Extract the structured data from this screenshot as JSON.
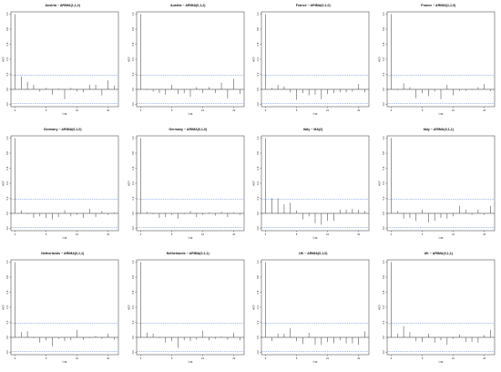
{
  "chart_data": [
    {
      "type": "acf",
      "title": "Austria ~ ARIMA(1,1,2)",
      "xlabel": "Lag",
      "ylabel": "ACF",
      "xlim": [
        0,
        16
      ],
      "ylim": [
        -0.2,
        1.0
      ],
      "conf": 0.19,
      "lags": [
        0,
        1,
        2,
        3,
        4,
        5,
        6,
        7,
        8,
        9,
        10,
        11,
        12,
        13,
        14,
        15,
        16
      ],
      "values": [
        1.0,
        0.17,
        0.1,
        0.06,
        -0.03,
        0.02,
        -0.07,
        0.01,
        -0.13,
        0.02,
        -0.03,
        -0.04,
        0.06,
        0.06,
        -0.08,
        0.12,
        0.05
      ],
      "x_ticks": [
        0,
        5,
        10,
        15
      ],
      "y_ticks": [
        -0.2,
        0.0,
        0.2,
        0.4,
        0.6,
        0.8,
        1.0
      ]
    },
    {
      "type": "acf",
      "title": "Austria ~ ARIMA(0,1,2)",
      "xlabel": "Lag",
      "ylabel": "ACF",
      "xlim": [
        0,
        16
      ],
      "ylim": [
        -0.2,
        1.0
      ],
      "conf": 0.19,
      "lags": [
        0,
        1,
        2,
        3,
        4,
        5,
        6,
        7,
        8,
        9,
        10,
        11,
        12,
        13,
        14,
        15,
        16
      ],
      "values": [
        1.0,
        -0.01,
        -0.03,
        -0.05,
        -0.07,
        0.06,
        -0.06,
        -0.05,
        -0.1,
        0.03,
        -0.05,
        0.03,
        -0.05,
        0.09,
        -0.12,
        0.14,
        -0.06
      ],
      "x_ticks": [
        0,
        5,
        10,
        15
      ],
      "y_ticks": [
        -0.2,
        0.0,
        0.2,
        0.4,
        0.6,
        0.8,
        1.0
      ]
    },
    {
      "type": "acf",
      "title": "France ~ ARIMA(0,1,0)",
      "xlabel": "Lag",
      "ylabel": "ACF",
      "xlim": [
        0,
        16
      ],
      "ylim": [
        -0.2,
        1.0
      ],
      "conf": 0.19,
      "lags": [
        0,
        1,
        2,
        3,
        4,
        5,
        6,
        7,
        8,
        9,
        10,
        11,
        12,
        13,
        14,
        15,
        16
      ],
      "values": [
        1.0,
        0.02,
        0.06,
        0.04,
        -0.04,
        -0.14,
        -0.05,
        -0.08,
        -0.07,
        -0.13,
        -0.06,
        -0.05,
        -0.04,
        -0.04,
        -0.03,
        0.07,
        -0.04
      ],
      "x_ticks": [
        0,
        5,
        10,
        15
      ],
      "y_ticks": [
        -0.2,
        0.0,
        0.2,
        0.4,
        0.6,
        0.8,
        1.0
      ]
    },
    {
      "type": "acf",
      "title": "France ~ ARIMA(1,1,0)",
      "xlabel": "Lag",
      "ylabel": "ACF",
      "xlim": [
        0,
        16
      ],
      "ylim": [
        -0.2,
        1.0
      ],
      "conf": 0.19,
      "lags": [
        0,
        1,
        2,
        3,
        4,
        5,
        6,
        7,
        8,
        9,
        10,
        11,
        12,
        13,
        14,
        15,
        16
      ],
      "values": [
        1.0,
        -0.01,
        0.08,
        0.03,
        -0.12,
        -0.05,
        -0.09,
        -0.03,
        -0.13,
        0.06,
        -0.08,
        -0.02,
        -0.02,
        -0.01,
        0.03,
        0.07,
        -0.02
      ],
      "x_ticks": [
        0,
        5,
        10,
        15
      ],
      "y_ticks": [
        -0.2,
        0.0,
        0.2,
        0.4,
        0.6,
        0.8,
        1.0
      ]
    },
    {
      "type": "acf",
      "title": "Germany ~ ARIMA(0,1,0)",
      "xlabel": "Lag",
      "ylabel": "ACF",
      "xlim": [
        0,
        16
      ],
      "ylim": [
        -0.2,
        1.0
      ],
      "conf": 0.19,
      "lags": [
        0,
        1,
        2,
        3,
        4,
        5,
        6,
        7,
        8,
        9,
        10,
        11,
        12,
        13,
        14,
        15,
        16
      ],
      "values": [
        1.0,
        0.04,
        -0.01,
        -0.06,
        -0.04,
        -0.06,
        -0.08,
        -0.05,
        0.04,
        -0.04,
        -0.02,
        -0.06,
        0.06,
        -0.05,
        0.03,
        -0.02,
        0.01
      ],
      "x_ticks": [
        0,
        5,
        10,
        15
      ],
      "y_ticks": [
        -0.2,
        0.0,
        0.2,
        0.4,
        0.6,
        0.8,
        1.0
      ]
    },
    {
      "type": "acf",
      "title": "Germany ~ ARIMA(0,1,0)",
      "xlabel": "Lag",
      "ylabel": "ACF",
      "xlim": [
        0,
        16
      ],
      "ylim": [
        -0.2,
        1.0
      ],
      "conf": 0.19,
      "lags": [
        0,
        1,
        2,
        3,
        4,
        5,
        6,
        7,
        8,
        9,
        10,
        11,
        12,
        13,
        14,
        15,
        16
      ],
      "values": [
        1.0,
        0.02,
        -0.01,
        -0.06,
        -0.05,
        -0.02,
        -0.07,
        -0.01,
        0.03,
        -0.05,
        -0.02,
        0.01,
        -0.03,
        0.02,
        -0.05,
        0.01,
        -0.02
      ],
      "x_ticks": [
        0,
        5,
        10,
        15
      ],
      "y_ticks": [
        -0.2,
        0.0,
        0.2,
        0.4,
        0.6,
        0.8,
        1.0
      ]
    },
    {
      "type": "acf",
      "title": "Italy ~ MA(2)",
      "xlabel": "Lag",
      "ylabel": "ACF",
      "xlim": [
        0,
        16
      ],
      "ylim": [
        -0.2,
        1.0
      ],
      "conf": 0.19,
      "lags": [
        0,
        1,
        2,
        3,
        4,
        5,
        6,
        7,
        8,
        9,
        10,
        11,
        12,
        13,
        14,
        15,
        16
      ],
      "values": [
        1.0,
        0.2,
        0.2,
        0.12,
        0.14,
        0.04,
        -0.08,
        -0.04,
        -0.13,
        -0.15,
        -0.1,
        -0.1,
        0.05,
        0.05,
        0.06,
        0.05,
        0.03
      ],
      "x_ticks": [
        0,
        5,
        10,
        15
      ],
      "y_ticks": [
        -0.2,
        0.0,
        0.2,
        0.4,
        0.6,
        0.8,
        1.0
      ]
    },
    {
      "type": "acf",
      "title": "Italy ~ ARIMA(0,1,1)",
      "xlabel": "Lag",
      "ylabel": "ACF",
      "xlim": [
        0,
        16
      ],
      "ylim": [
        -0.2,
        1.0
      ],
      "conf": 0.19,
      "lags": [
        0,
        1,
        2,
        3,
        4,
        5,
        6,
        7,
        8,
        9,
        10,
        11,
        12,
        13,
        14,
        15,
        16
      ],
      "values": [
        1.0,
        0.03,
        -0.07,
        -0.06,
        -0.1,
        0.05,
        -0.12,
        -0.1,
        -0.06,
        -0.07,
        -0.04,
        0.1,
        0.05,
        -0.02,
        0.05,
        -0.02,
        0.1
      ],
      "x_ticks": [
        0,
        5,
        10,
        15
      ],
      "y_ticks": [
        -0.2,
        0.0,
        0.2,
        0.4,
        0.6,
        0.8,
        1.0
      ]
    },
    {
      "type": "acf",
      "title": "Netherlands ~ ARIMA(0,1,1)",
      "xlabel": "Lag",
      "ylabel": "ACF",
      "xlim": [
        0,
        16
      ],
      "ylim": [
        -0.2,
        1.0
      ],
      "conf": 0.19,
      "lags": [
        0,
        1,
        2,
        3,
        4,
        5,
        6,
        7,
        8,
        9,
        10,
        11,
        12,
        13,
        14,
        15,
        16
      ],
      "values": [
        1.0,
        0.07,
        0.08,
        -0.01,
        -0.07,
        -0.04,
        -0.12,
        -0.02,
        -0.05,
        -0.04,
        0.1,
        -0.03,
        -0.01,
        0.02,
        -0.02,
        0.05,
        -0.03
      ],
      "x_ticks": [
        0,
        5,
        10,
        15
      ],
      "y_ticks": [
        -0.2,
        0.0,
        0.2,
        0.4,
        0.6,
        0.8,
        1.0
      ]
    },
    {
      "type": "acf",
      "title": "Netherlands ~ ARIMA(0,1,1)",
      "xlabel": "Lag",
      "ylabel": "ACF",
      "xlim": [
        0,
        16
      ],
      "ylim": [
        -0.2,
        1.0
      ],
      "conf": 0.19,
      "lags": [
        0,
        1,
        2,
        3,
        4,
        5,
        6,
        7,
        8,
        9,
        10,
        11,
        12,
        13,
        14,
        15,
        16
      ],
      "values": [
        1.0,
        0.06,
        0.05,
        -0.01,
        -0.07,
        -0.05,
        -0.14,
        -0.04,
        -0.05,
        -0.03,
        0.09,
        -0.04,
        -0.02,
        0.01,
        -0.03,
        0.06,
        -0.04
      ],
      "x_ticks": [
        0,
        5,
        10,
        15
      ],
      "y_ticks": [
        -0.2,
        0.0,
        0.2,
        0.4,
        0.6,
        0.8,
        1.0
      ]
    },
    {
      "type": "acf",
      "title": "UK ~ ARIMA(0,1,0)",
      "xlabel": "Lag",
      "ylabel": "ACF",
      "xlim": [
        0,
        16
      ],
      "ylim": [
        -0.2,
        1.0
      ],
      "conf": 0.19,
      "lags": [
        0,
        1,
        2,
        3,
        4,
        5,
        6,
        7,
        8,
        9,
        10,
        11,
        12,
        13,
        14,
        15,
        16
      ],
      "values": [
        1.0,
        -0.05,
        0.05,
        0.05,
        0.12,
        -0.05,
        -0.09,
        0.06,
        -0.1,
        -0.1,
        -0.06,
        -0.08,
        -0.04,
        -0.08,
        -0.08,
        -0.1,
        0.08
      ],
      "x_ticks": [
        0,
        5,
        10,
        15
      ],
      "y_ticks": [
        -0.2,
        0.0,
        0.2,
        0.4,
        0.6,
        0.8,
        1.0
      ]
    },
    {
      "type": "acf",
      "title": "UK ~ ARIMA(0,1,1)",
      "xlabel": "Lag",
      "ylabel": "ACF",
      "xlim": [
        0,
        16
      ],
      "ylim": [
        -0.2,
        1.0
      ],
      "conf": 0.19,
      "lags": [
        0,
        1,
        2,
        3,
        4,
        5,
        6,
        7,
        8,
        9,
        10,
        11,
        12,
        13,
        14,
        15,
        16
      ],
      "values": [
        1.0,
        0.05,
        0.15,
        0.07,
        -0.05,
        -0.06,
        0.05,
        -0.07,
        -0.04,
        -0.1,
        -0.02,
        0.04,
        -0.06,
        -0.06,
        -0.07,
        0.03,
        0.1
      ],
      "x_ticks": [
        0,
        5,
        10,
        15
      ],
      "y_ticks": [
        -0.2,
        0.0,
        0.2,
        0.4,
        0.6,
        0.8,
        1.0
      ]
    }
  ],
  "colors": {
    "bar": "#555555",
    "axis": "#333333",
    "conf_line": "#4a78c8",
    "zero_line": "#222222",
    "text": "#111111"
  }
}
